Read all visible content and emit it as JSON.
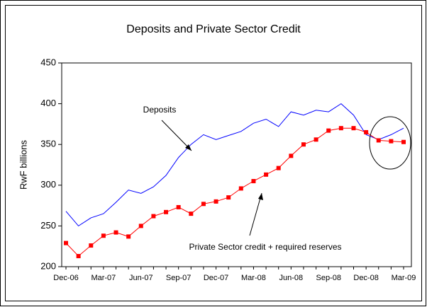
{
  "chart_data": {
    "type": "line",
    "title": "Deposits and Private Sector Credit",
    "y_label": "RwF billions",
    "categories": [
      "Dec-06",
      null,
      null,
      "Mar-07",
      null,
      null,
      "Jun-07",
      null,
      null,
      "Sep-07",
      null,
      null,
      "Dec-07",
      null,
      null,
      "Mar-08",
      null,
      null,
      "Jun-08",
      null,
      null,
      "Sep-08",
      null,
      null,
      "Dec-08",
      null,
      null,
      "Mar-09"
    ],
    "series": [
      {
        "name": "Deposits",
        "color": "#0000ff",
        "marker": false,
        "values": [
          268,
          250,
          260,
          265,
          279,
          294,
          290,
          298,
          312,
          334,
          350,
          362,
          356,
          361,
          366,
          376,
          381,
          372,
          390,
          386,
          392,
          390,
          400,
          386,
          362,
          356,
          362,
          370
        ]
      },
      {
        "name": "Private Sector credit + required reserves",
        "color": "#ff0000",
        "marker": true,
        "values": [
          229,
          213,
          226,
          238,
          242,
          237,
          250,
          262,
          267,
          273,
          265,
          277,
          280,
          285,
          296,
          305,
          313,
          321,
          336,
          350,
          356,
          367,
          370,
          370,
          365,
          355,
          354,
          353
        ]
      }
    ],
    "ylim": [
      200,
      450
    ],
    "yticks": [
      200,
      250,
      300,
      350,
      400,
      450
    ],
    "grid": false
  }
}
